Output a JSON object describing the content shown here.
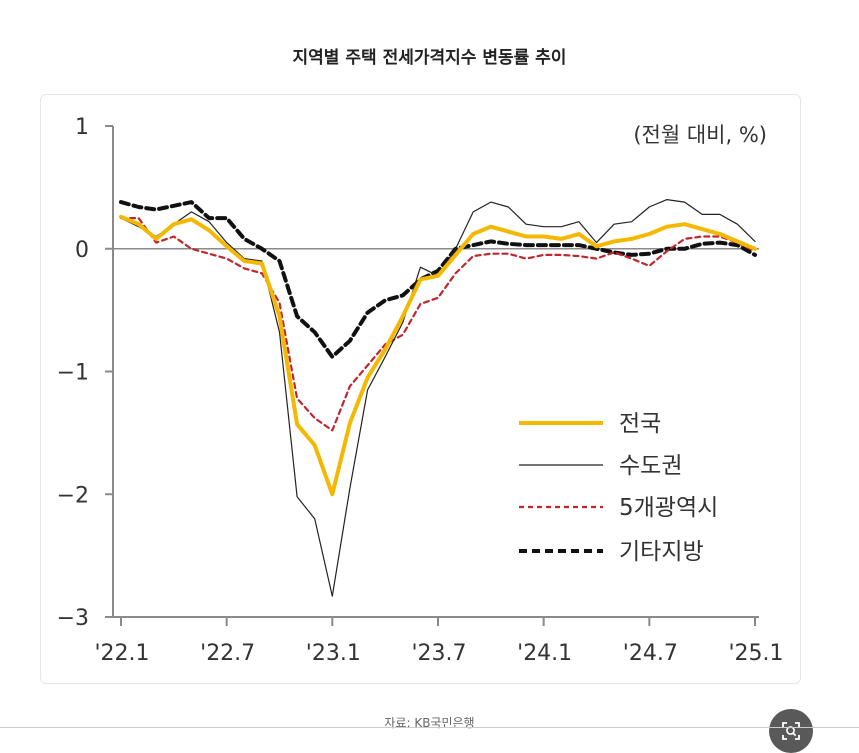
{
  "title": "지역별 주택 전세가격지수 변동률 추이",
  "source": "자료: KB국민은행",
  "zoom_icon": "zoom-icon",
  "chart_data": {
    "type": "line",
    "unit_label": "(전월 대비, %)",
    "ylim": [
      -3,
      1
    ],
    "yticks": [
      1,
      0,
      -1,
      -2,
      -3
    ],
    "ytick_labels": [
      "1",
      "0",
      "−1",
      "−2",
      "−3"
    ],
    "xtick_labels": [
      "'22.1",
      "'22.7",
      "'23.1",
      "'23.7",
      "'24.1",
      "'24.7",
      "'25.1"
    ],
    "xtick_index": [
      0,
      6,
      12,
      18,
      24,
      30,
      36
    ],
    "x": [
      "22.1",
      "22.2",
      "22.3",
      "22.4",
      "22.5",
      "22.6",
      "22.7",
      "22.8",
      "22.9",
      "22.10",
      "22.11",
      "22.12",
      "23.1",
      "23.2",
      "23.3",
      "23.4",
      "23.5",
      "23.6",
      "23.7",
      "23.8",
      "23.9",
      "23.10",
      "23.11",
      "23.12",
      "24.1",
      "24.2",
      "24.3",
      "24.4",
      "24.5",
      "24.6",
      "24.7",
      "24.8",
      "24.9",
      "24.10",
      "24.11",
      "24.12",
      "25.1"
    ],
    "legend_position": "bottom-right",
    "grid": false,
    "series": [
      {
        "name": "전국",
        "color": "#f5b800",
        "style": "solid-thick",
        "values": [
          0.26,
          0.2,
          0.08,
          0.2,
          0.24,
          0.15,
          0.02,
          -0.1,
          -0.12,
          -0.55,
          -1.43,
          -1.6,
          -2.0,
          -1.42,
          -1.05,
          -0.82,
          -0.55,
          -0.25,
          -0.22,
          -0.05,
          0.12,
          0.18,
          0.14,
          0.1,
          0.1,
          0.08,
          0.12,
          0.02,
          0.06,
          0.08,
          0.12,
          0.18,
          0.2,
          0.16,
          0.12,
          0.06,
          0.0
        ]
      },
      {
        "name": "수도권",
        "color": "#222222",
        "style": "solid-thin",
        "values": [
          0.25,
          0.18,
          0.1,
          0.2,
          0.3,
          0.22,
          0.05,
          -0.08,
          -0.1,
          -0.68,
          -2.02,
          -2.2,
          -2.83,
          -1.95,
          -1.15,
          -0.88,
          -0.6,
          -0.15,
          -0.22,
          0.0,
          0.3,
          0.38,
          0.34,
          0.2,
          0.18,
          0.18,
          0.22,
          0.05,
          0.2,
          0.22,
          0.34,
          0.4,
          0.38,
          0.28,
          0.28,
          0.2,
          0.06
        ]
      },
      {
        "name": "5개광역시",
        "color": "#c0272d",
        "style": "dashed",
        "values": [
          0.25,
          0.25,
          0.05,
          0.1,
          0.0,
          -0.04,
          -0.08,
          -0.16,
          -0.2,
          -0.44,
          -1.22,
          -1.38,
          -1.48,
          -1.12,
          -0.95,
          -0.78,
          -0.7,
          -0.45,
          -0.4,
          -0.2,
          -0.06,
          -0.04,
          -0.04,
          -0.08,
          -0.05,
          -0.05,
          -0.06,
          -0.08,
          -0.03,
          -0.08,
          -0.14,
          -0.02,
          0.08,
          0.1,
          0.1,
          0.05,
          -0.02
        ]
      },
      {
        "name": "기타지방",
        "color": "#111111",
        "style": "dashed-thick",
        "values": [
          0.38,
          0.34,
          0.32,
          0.35,
          0.38,
          0.25,
          0.25,
          0.08,
          0.0,
          -0.1,
          -0.55,
          -0.68,
          -0.88,
          -0.75,
          -0.52,
          -0.42,
          -0.38,
          -0.25,
          -0.18,
          0.0,
          0.03,
          0.06,
          0.04,
          0.03,
          0.03,
          0.03,
          0.03,
          0.0,
          -0.03,
          -0.05,
          -0.04,
          0.0,
          0.0,
          0.04,
          0.05,
          0.03,
          -0.05
        ]
      }
    ]
  }
}
